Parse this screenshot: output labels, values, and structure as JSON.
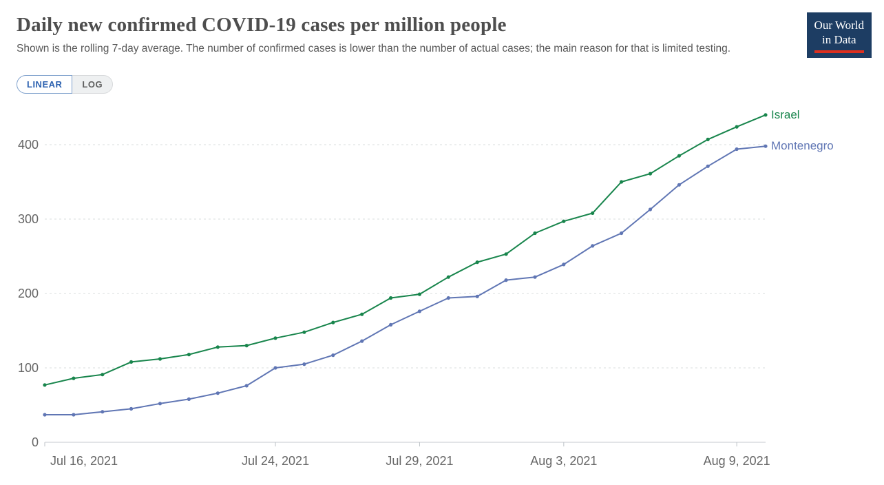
{
  "header": {
    "title": "Daily new confirmed COVID-19 cases per million people",
    "subtitle": "Shown is the rolling 7-day average. The number of confirmed cases is lower than the number of actual cases; the main reason for that is limited testing.",
    "logo": {
      "line1": "Our World",
      "line2": "in Data"
    }
  },
  "controls": {
    "scale_toggle": [
      {
        "label": "LINEAR",
        "selected": true
      },
      {
        "label": "LOG",
        "selected": false
      }
    ]
  },
  "colors": {
    "toggle_blue": "#2d62b0",
    "toggle_blue_border": "#7ea0cc",
    "owid_navy": "#1d3d63",
    "owid_red": "#dc3020"
  },
  "chart_data": {
    "type": "line",
    "title": "Daily new confirmed COVID-19 cases per million people",
    "xlabel": "",
    "ylabel": "",
    "grid": "dashed-horizontal",
    "legend_position": "line-end-labels",
    "ylim": [
      0,
      450
    ],
    "y_ticks": [
      0,
      100,
      200,
      300,
      400
    ],
    "x": [
      "Jul 16, 2021",
      "Jul 17, 2021",
      "Jul 18, 2021",
      "Jul 19, 2021",
      "Jul 20, 2021",
      "Jul 21, 2021",
      "Jul 22, 2021",
      "Jul 23, 2021",
      "Jul 24, 2021",
      "Jul 25, 2021",
      "Jul 26, 2021",
      "Jul 27, 2021",
      "Jul 28, 2021",
      "Jul 29, 2021",
      "Jul 30, 2021",
      "Jul 31, 2021",
      "Aug 1, 2021",
      "Aug 2, 2021",
      "Aug 3, 2021",
      "Aug 4, 2021",
      "Aug 5, 2021",
      "Aug 6, 2021",
      "Aug 7, 2021",
      "Aug 8, 2021",
      "Aug 9, 2021",
      "Aug 10, 2021"
    ],
    "x_ticks": [
      {
        "index": 0,
        "label": "Jul 16, 2021"
      },
      {
        "index": 8,
        "label": "Jul 24, 2021"
      },
      {
        "index": 13,
        "label": "Jul 29, 2021"
      },
      {
        "index": 18,
        "label": "Aug 3, 2021"
      },
      {
        "index": 24,
        "label": "Aug 9, 2021"
      }
    ],
    "series": [
      {
        "name": "Israel",
        "color": "#18854C",
        "values": [
          77,
          86,
          91,
          108,
          112,
          118,
          128,
          130,
          140,
          148,
          161,
          172,
          194,
          199,
          222,
          242,
          253,
          281,
          297,
          308,
          350,
          361,
          385,
          407,
          424,
          440
        ]
      },
      {
        "name": "Montenegro",
        "color": "#6076B4",
        "values": [
          37,
          37,
          41,
          45,
          52,
          58,
          66,
          76,
          100,
          105,
          117,
          136,
          158,
          176,
          194,
          196,
          218,
          222,
          239,
          264,
          281,
          313,
          346,
          371,
          394,
          398
        ]
      }
    ]
  }
}
